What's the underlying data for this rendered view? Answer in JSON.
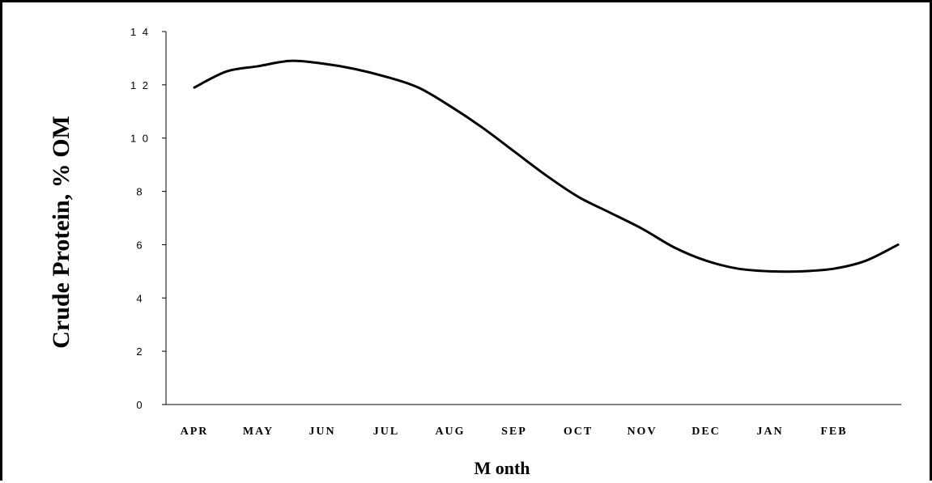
{
  "chart_data": {
    "type": "line",
    "title": "",
    "xlabel": "M onth",
    "ylabel": "Crude Protein,  % OM",
    "ylim": [
      0,
      14
    ],
    "yticks": [
      "0",
      "2",
      "4",
      "6",
      "8",
      "1 0",
      "1 2",
      "1 4"
    ],
    "ytick_values": [
      0,
      2,
      4,
      6,
      8,
      10,
      12,
      14
    ],
    "categories": [
      "APR",
      "MAY",
      "JUN",
      "JUL",
      "AUG",
      "SEP",
      "OCT",
      "NOV",
      "DEC",
      "JAN",
      "FEB"
    ],
    "grid": false,
    "series": [
      {
        "color": "#000000",
        "x": [
          0,
          0.5,
          1,
          1.5,
          2,
          2.5,
          3,
          3.5,
          4,
          4.5,
          5,
          5.5,
          6,
          6.5,
          7,
          7.5,
          8,
          8.5,
          9,
          9.5,
          10,
          10.5,
          11
        ],
        "y": [
          11.9,
          12.5,
          12.7,
          12.9,
          12.8,
          12.6,
          12.3,
          11.9,
          11.2,
          10.4,
          9.5,
          8.6,
          7.8,
          7.2,
          6.6,
          5.9,
          5.4,
          5.1,
          5.0,
          5.0,
          5.1,
          5.4,
          6.0
        ]
      }
    ]
  }
}
